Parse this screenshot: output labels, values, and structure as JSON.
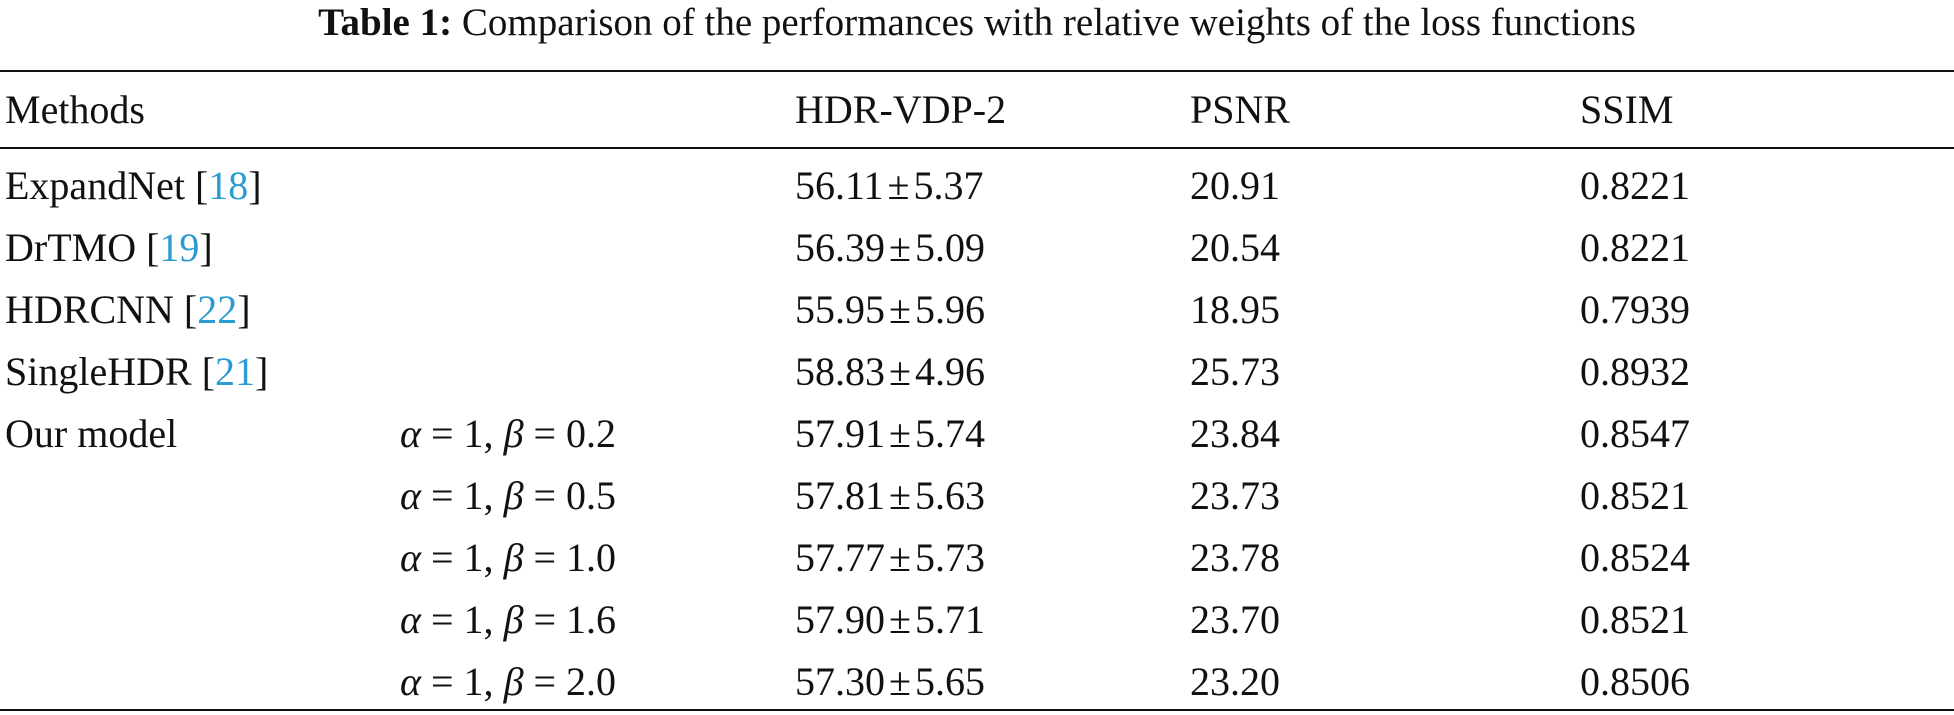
{
  "caption": {
    "label": "Table 1:",
    "text": "Comparison of the performances with relative weights of the loss functions"
  },
  "table": {
    "headers": {
      "methods": "Methods",
      "hdr_vdp": "HDR-VDP-2",
      "psnr": "PSNR",
      "ssim": "SSIM"
    },
    "rows": [
      {
        "method": "ExpandNet",
        "cite_open": "[",
        "cite": "18",
        "cite_close": "]",
        "hdr_mean": "56.11",
        "pm": "±",
        "hdr_std": "5.37",
        "psnr": "20.91",
        "ssim": "0.8221"
      },
      {
        "method": "DrTMO",
        "cite_open": "[",
        "cite": "19",
        "cite_close": "]",
        "hdr_mean": "56.39",
        "pm": "±",
        "hdr_std": "5.09",
        "psnr": "20.54",
        "ssim": "0.8221"
      },
      {
        "method": "HDRCNN",
        "cite_open": "[",
        "cite": "22",
        "cite_close": "]",
        "hdr_mean": "55.95",
        "pm": "±",
        "hdr_std": "5.96",
        "psnr": "18.95",
        "ssim": "0.7939"
      },
      {
        "method": "SingleHDR",
        "cite_open": "[",
        "cite": "21",
        "cite_close": "]",
        "hdr_mean": "58.83",
        "pm": "±",
        "hdr_std": "4.96",
        "psnr": "25.73",
        "ssim": "0.8932"
      }
    ],
    "our_model": {
      "method": "Our model",
      "rows": [
        {
          "alpha_sym": "α",
          "eq1": " = 1, ",
          "beta_sym": "β",
          "eq2": " = ",
          "beta_val": "0.2",
          "hdr_mean": "57.91",
          "pm": "±",
          "hdr_std": "5.74",
          "psnr": "23.84",
          "ssim": "0.8547"
        },
        {
          "alpha_sym": "α",
          "eq1": " = 1, ",
          "beta_sym": "β",
          "eq2": " = ",
          "beta_val": "0.5",
          "hdr_mean": "57.81",
          "pm": "±",
          "hdr_std": "5.63",
          "psnr": "23.73",
          "ssim": "0.8521"
        },
        {
          "alpha_sym": "α",
          "eq1": " = 1, ",
          "beta_sym": "β",
          "eq2": " = ",
          "beta_val": "1.0",
          "hdr_mean": "57.77",
          "pm": "±",
          "hdr_std": "5.73",
          "psnr": "23.78",
          "ssim": "0.8524"
        },
        {
          "alpha_sym": "α",
          "eq1": " = 1, ",
          "beta_sym": "β",
          "eq2": " = ",
          "beta_val": "1.6",
          "hdr_mean": "57.90",
          "pm": "±",
          "hdr_std": "5.71",
          "psnr": "23.70",
          "ssim": "0.8521"
        },
        {
          "alpha_sym": "α",
          "eq1": " = 1, ",
          "beta_sym": "β",
          "eq2": " = ",
          "beta_val": "2.0",
          "hdr_mean": "57.30",
          "pm": "±",
          "hdr_std": "5.65",
          "psnr": "23.20",
          "ssim": "0.8506"
        }
      ]
    },
    "colors": {
      "text": "#111111",
      "citation": "#2b9bd1"
    }
  }
}
